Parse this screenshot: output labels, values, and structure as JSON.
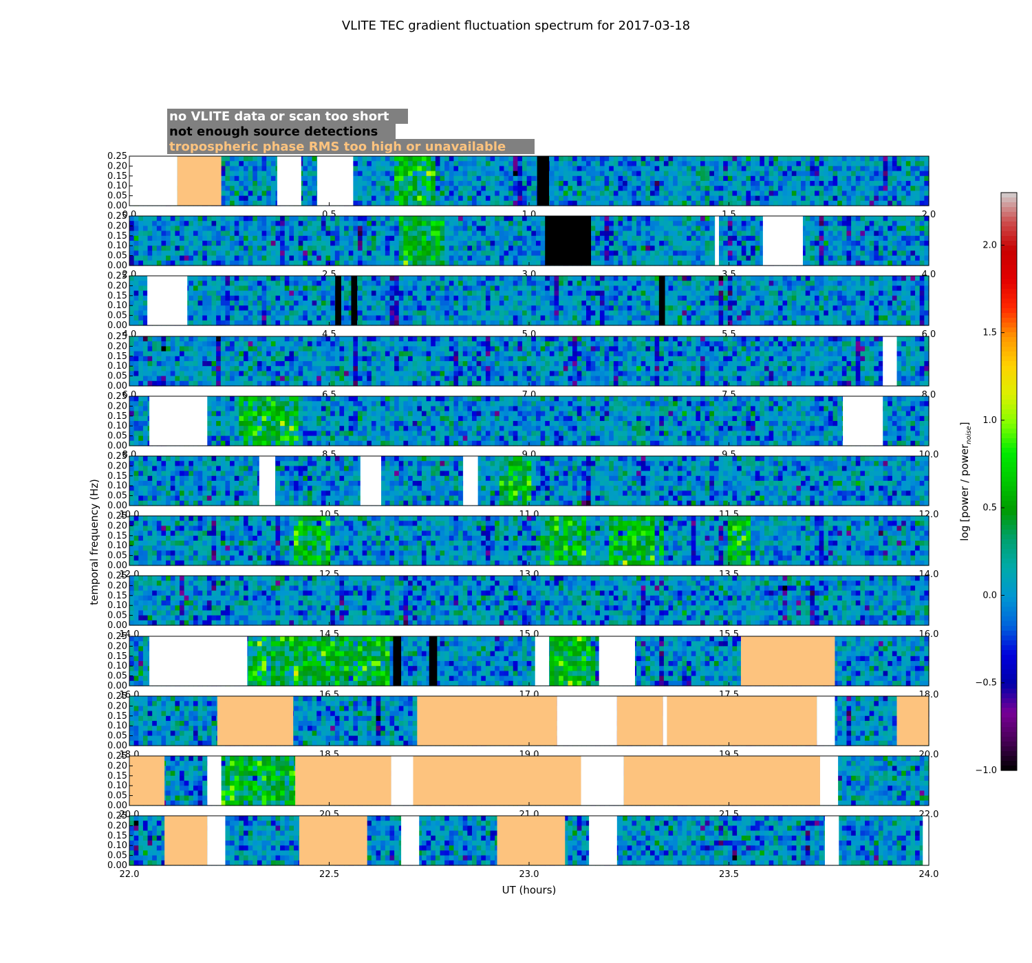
{
  "chart_data": {
    "type": "heatmap",
    "title": "VLITE TEC gradient fluctuation spectrum for 2017-03-18",
    "xlabel": "UT (hours)",
    "ylabel": "temporal frequency (Hz)",
    "ylim": [
      0,
      0.25
    ],
    "y_ticks": [
      "0.00",
      "0.05",
      "0.10",
      "0.15",
      "0.20",
      "0.25"
    ],
    "colorbar": {
      "label": "log [power / power",
      "label_sub": "noise",
      "label_close": "]",
      "range": [
        -1.0,
        2.3
      ],
      "ticks": [
        "−1.0",
        "−0.5",
        "0.0",
        "0.5",
        "1.0",
        "1.5",
        "2.0"
      ],
      "tick_values": [
        -1.0,
        -0.5,
        0.0,
        0.5,
        1.0,
        1.5,
        2.0
      ],
      "colormap": "nipy_spectral"
    },
    "legend": [
      {
        "label": "no VLITE data or scan too short",
        "color": "#ffffff"
      },
      {
        "label": "not enough source detections",
        "color": "#000000"
      },
      {
        "label": "tropospheric phase RMS too high or unavailable",
        "color": "#fdc37e"
      }
    ],
    "legend_box_color": "#808080",
    "flag_colors": {
      "nodata": "#ffffff",
      "nodet": "#000000",
      "tropo": "#fdc37e"
    },
    "panels": [
      {
        "x_range": [
          0,
          2
        ],
        "ticks": [
          "0.0",
          "0.5",
          "1.0",
          "1.5",
          "2.0"
        ],
        "flags": [
          {
            "type": "nodata",
            "start": 0.0,
            "end": 0.12
          },
          {
            "type": "tropo",
            "start": 0.12,
            "end": 0.23
          },
          {
            "type": "nodata",
            "start": 0.37,
            "end": 0.43
          },
          {
            "type": "nodata",
            "start": 0.47,
            "end": 0.56
          },
          {
            "type": "nodet",
            "start": 1.02,
            "end": 1.05
          }
        ],
        "active": [
          {
            "start": 0.66,
            "end": 0.76
          }
        ]
      },
      {
        "x_range": [
          2,
          4
        ],
        "ticks": [
          "2.0",
          "2.5",
          "3.0",
          "3.5",
          "4.0"
        ],
        "flags": [
          {
            "type": "nodet",
            "start": 3.04,
            "end": 3.155
          },
          {
            "type": "nodata",
            "start": 3.465,
            "end": 3.475
          },
          {
            "type": "nodata",
            "start": 3.585,
            "end": 3.685
          }
        ],
        "active": [
          {
            "start": 2.67,
            "end": 2.79
          }
        ]
      },
      {
        "x_range": [
          4,
          6
        ],
        "ticks": [
          "4.0",
          "4.5",
          "5.0",
          "5.5",
          "6.0"
        ],
        "flags": [
          {
            "type": "nodata",
            "start": 4.045,
            "end": 4.145
          },
          {
            "type": "nodet",
            "start": 4.515,
            "end": 4.53
          },
          {
            "type": "nodet",
            "start": 4.555,
            "end": 4.57
          },
          {
            "type": "nodet",
            "start": 5.325,
            "end": 5.34
          }
        ],
        "active": []
      },
      {
        "x_range": [
          6,
          8
        ],
        "ticks": [
          "6.0",
          "6.5",
          "7.0",
          "7.5",
          "8.0"
        ],
        "flags": [
          {
            "type": "nodata",
            "start": 7.885,
            "end": 7.92
          }
        ],
        "active": []
      },
      {
        "x_range": [
          8,
          10
        ],
        "ticks": [
          "8.0",
          "8.5",
          "9.0",
          "9.5",
          "10.0"
        ],
        "flags": [
          {
            "type": "nodata",
            "start": 8.05,
            "end": 8.195
          },
          {
            "type": "nodata",
            "start": 9.785,
            "end": 9.885
          }
        ],
        "active": [
          {
            "start": 8.27,
            "end": 8.42
          }
        ]
      },
      {
        "x_range": [
          10,
          12
        ],
        "ticks": [
          "10.0",
          "10.5",
          "11.0",
          "11.5",
          "12.0"
        ],
        "flags": [
          {
            "type": "nodata",
            "start": 10.325,
            "end": 10.365
          },
          {
            "type": "nodata",
            "start": 10.578,
            "end": 10.63
          },
          {
            "type": "nodata",
            "start": 10.835,
            "end": 10.872
          }
        ],
        "active": [
          {
            "start": 10.93,
            "end": 11.0
          }
        ]
      },
      {
        "x_range": [
          12,
          14
        ],
        "ticks": [
          "12.0",
          "12.5",
          "13.0",
          "13.5",
          "14.0"
        ],
        "flags": [],
        "active": [
          {
            "start": 12.41,
            "end": 12.5
          },
          {
            "start": 13.03,
            "end": 13.14
          },
          {
            "start": 13.2,
            "end": 13.34
          },
          {
            "start": 13.5,
            "end": 13.55
          }
        ]
      },
      {
        "x_range": [
          14,
          16
        ],
        "ticks": [
          "14.0",
          "14.5",
          "15.0",
          "15.5",
          "16.0"
        ],
        "flags": [],
        "active": []
      },
      {
        "x_range": [
          16,
          18
        ],
        "ticks": [
          "16.0",
          "16.5",
          "17.0",
          "17.5",
          "18.0"
        ],
        "flags": [
          {
            "type": "nodata",
            "start": 16.05,
            "end": 16.295
          },
          {
            "type": "nodet",
            "start": 16.66,
            "end": 16.68
          },
          {
            "type": "nodet",
            "start": 16.75,
            "end": 16.77
          },
          {
            "type": "nodata",
            "start": 17.015,
            "end": 17.05
          },
          {
            "type": "nodata",
            "start": 17.175,
            "end": 17.265
          },
          {
            "type": "tropo",
            "start": 17.53,
            "end": 17.765
          }
        ],
        "active": [
          {
            "start": 16.3,
            "end": 16.65
          },
          {
            "start": 17.05,
            "end": 17.17
          }
        ]
      },
      {
        "x_range": [
          18,
          20
        ],
        "ticks": [
          "18.0",
          "18.5",
          "19.0",
          "19.5",
          "20.0"
        ],
        "flags": [
          {
            "type": "tropo",
            "start": 18.22,
            "end": 18.41
          },
          {
            "type": "tropo",
            "start": 18.72,
            "end": 19.07
          },
          {
            "type": "nodata",
            "start": 19.07,
            "end": 19.22
          },
          {
            "type": "tropo",
            "start": 19.22,
            "end": 19.335
          },
          {
            "type": "nodata",
            "start": 19.335,
            "end": 19.345
          },
          {
            "type": "tropo",
            "start": 19.345,
            "end": 19.72
          },
          {
            "type": "nodata",
            "start": 19.72,
            "end": 19.765
          },
          {
            "type": "tropo",
            "start": 19.92,
            "end": 20.0
          }
        ],
        "active": []
      },
      {
        "x_range": [
          20,
          22
        ],
        "ticks": [
          "20.0",
          "20.5",
          "21.0",
          "21.5",
          "22.0"
        ],
        "flags": [
          {
            "type": "tropo",
            "start": 20.0,
            "end": 20.088
          },
          {
            "type": "nodata",
            "start": 20.195,
            "end": 20.23
          },
          {
            "type": "tropo",
            "start": 20.415,
            "end": 20.655
          },
          {
            "type": "nodata",
            "start": 20.655,
            "end": 20.71
          },
          {
            "type": "tropo",
            "start": 20.71,
            "end": 21.13
          },
          {
            "type": "nodata",
            "start": 21.13,
            "end": 21.237
          },
          {
            "type": "tropo",
            "start": 21.237,
            "end": 21.728
          },
          {
            "type": "nodata",
            "start": 21.728,
            "end": 21.773
          }
        ],
        "active": [
          {
            "start": 20.23,
            "end": 20.42
          }
        ]
      },
      {
        "x_range": [
          22,
          24
        ],
        "ticks": [
          "22.0",
          "22.5",
          "23.0",
          "23.5",
          "24.0"
        ],
        "flags": [
          {
            "type": "tropo",
            "start": 22.088,
            "end": 22.195
          },
          {
            "type": "nodata",
            "start": 22.195,
            "end": 22.24
          },
          {
            "type": "tropo",
            "start": 22.425,
            "end": 22.595
          },
          {
            "type": "nodata",
            "start": 22.68,
            "end": 22.725
          },
          {
            "type": "tropo",
            "start": 22.92,
            "end": 23.09
          },
          {
            "type": "nodata",
            "start": 23.15,
            "end": 23.22
          },
          {
            "type": "nodata",
            "start": 23.74,
            "end": 23.775
          },
          {
            "type": "nodata",
            "start": 23.985,
            "end": 24.0
          }
        ],
        "active": []
      }
    ]
  }
}
